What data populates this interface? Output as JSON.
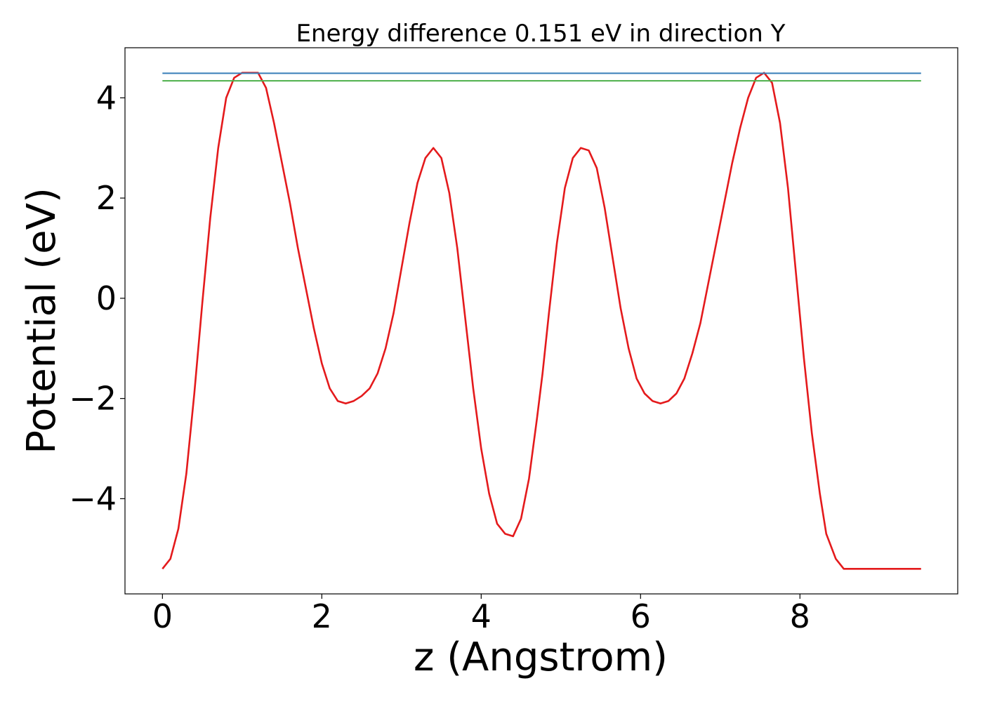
{
  "chart_data": {
    "type": "line",
    "title": "Energy difference 0.151 eV in direction Y",
    "xlabel": "z (Angstrom)",
    "ylabel": "Potential (eV)",
    "xlim": [
      -0.47,
      9.98
    ],
    "ylim": [
      -5.9,
      5.0
    ],
    "x_ticks": [
      0,
      2,
      4,
      6,
      8
    ],
    "x_tick_labels": [
      "0",
      "2",
      "4",
      "6",
      "8"
    ],
    "y_ticks": [
      -4,
      -2,
      0,
      2,
      4
    ],
    "y_tick_labels": [
      "−4",
      "−2",
      "0",
      "2",
      "4"
    ],
    "grid": false,
    "colors": {
      "potential": "#e41a1c",
      "upper_level": "#377eb8",
      "lower_level": "#4daf4a"
    },
    "series": [
      {
        "kind": "curve",
        "color_key": "potential",
        "x": [
          0.0,
          0.1,
          0.2,
          0.3,
          0.4,
          0.5,
          0.6,
          0.7,
          0.8,
          0.9,
          1.0,
          1.1,
          1.2,
          1.3,
          1.4,
          1.5,
          1.6,
          1.7,
          1.8,
          1.9,
          2.0,
          2.1,
          2.2,
          2.3,
          2.4,
          2.5,
          2.6,
          2.7,
          2.8,
          2.9,
          3.0,
          3.1,
          3.2,
          3.3,
          3.4,
          3.5,
          3.6,
          3.7,
          3.8,
          3.9,
          4.0,
          4.1,
          4.2,
          4.3,
          4.4,
          4.5,
          4.6,
          4.7,
          4.77,
          4.85,
          4.95,
          5.05,
          5.15,
          5.25,
          5.35,
          5.45,
          5.55,
          5.65,
          5.75,
          5.85,
          5.95,
          6.05,
          6.15,
          6.25,
          6.35,
          6.45,
          6.55,
          6.65,
          6.75,
          6.85,
          6.95,
          7.05,
          7.15,
          7.25,
          7.35,
          7.45,
          7.55,
          7.65,
          7.75,
          7.85,
          7.95,
          8.05,
          8.15,
          8.25,
          8.33,
          8.45,
          8.55,
          8.65,
          8.75,
          8.85,
          8.95,
          9.05,
          9.15,
          9.25,
          9.35,
          9.45,
          9.52
        ],
        "y": [
          -5.4,
          -5.2,
          -4.6,
          -3.5,
          -1.9,
          -0.1,
          1.6,
          3.0,
          4.0,
          4.4,
          4.5,
          4.5,
          4.5,
          4.2,
          3.5,
          2.7,
          1.9,
          1.0,
          0.2,
          -0.6,
          -1.3,
          -1.8,
          -2.05,
          -2.1,
          -2.05,
          -1.95,
          -1.8,
          -1.5,
          -1.0,
          -0.3,
          0.6,
          1.5,
          2.3,
          2.8,
          3.0,
          2.8,
          2.1,
          1.0,
          -0.4,
          -1.8,
          -3.0,
          -3.9,
          -4.5,
          -4.7,
          -4.75,
          -4.4,
          -3.6,
          -2.4,
          -1.5,
          -0.3,
          1.1,
          2.2,
          2.8,
          3.0,
          2.95,
          2.6,
          1.8,
          0.8,
          -0.2,
          -1.0,
          -1.6,
          -1.9,
          -2.05,
          -2.1,
          -2.05,
          -1.9,
          -1.6,
          -1.1,
          -0.5,
          0.3,
          1.1,
          1.9,
          2.7,
          3.4,
          4.0,
          4.4,
          4.5,
          4.3,
          3.5,
          2.2,
          0.5,
          -1.2,
          -2.7,
          -3.9,
          -4.7,
          -5.2,
          -5.4,
          -5.4,
          -5.4,
          -5.4,
          -5.4,
          -5.4,
          -5.4,
          -5.4,
          -5.4,
          -5.4,
          -5.4
        ]
      },
      {
        "kind": "hline",
        "color_key": "upper_level",
        "x": [
          0.0,
          9.52
        ],
        "y": [
          4.49,
          4.49
        ]
      },
      {
        "kind": "hline",
        "color_key": "lower_level",
        "x": [
          0.0,
          9.52
        ],
        "y": [
          4.339,
          4.339
        ]
      }
    ]
  }
}
